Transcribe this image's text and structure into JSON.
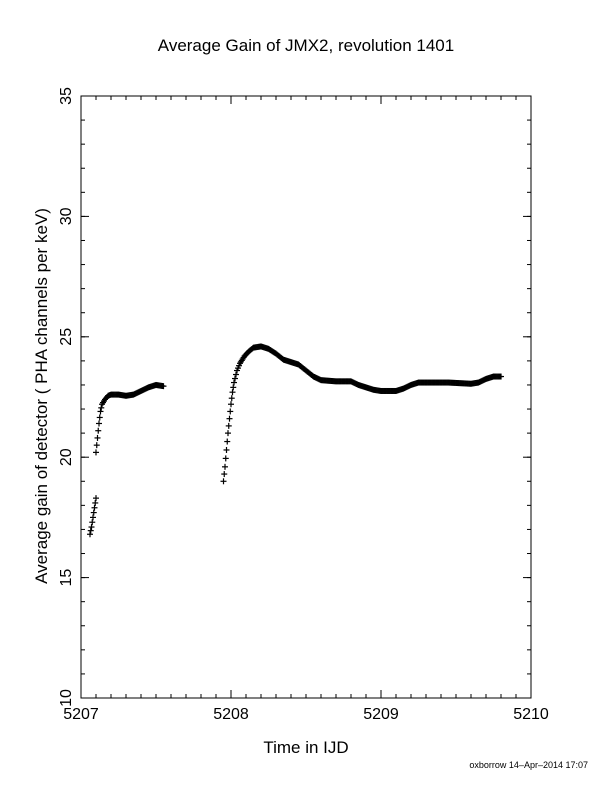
{
  "chart_data": {
    "type": "scatter",
    "title": "Average Gain of JMX2, revolution 1401",
    "xlabel": "Time in IJD",
    "ylabel": "Average gain of detector ( PHA channels per keV)",
    "xlim": [
      5207,
      5210
    ],
    "ylim": [
      10,
      35
    ],
    "xticks": [
      "5207",
      "5208",
      "5209",
      "5210"
    ],
    "yticks": [
      "10",
      "15",
      "20",
      "25",
      "30",
      "35"
    ],
    "marker": "+",
    "grid": false,
    "series": [
      {
        "values": [
          [
            5207.06,
            16.8
          ],
          [
            5207.07,
            17.1
          ],
          [
            5207.08,
            17.5
          ],
          [
            5207.09,
            17.9
          ],
          [
            5207.1,
            18.3
          ],
          [
            5207.1,
            20.2
          ],
          [
            5207.11,
            20.8
          ],
          [
            5207.12,
            21.4
          ],
          [
            5207.13,
            21.9
          ],
          [
            5207.14,
            22.2
          ],
          [
            5207.16,
            22.4
          ],
          [
            5207.18,
            22.55
          ],
          [
            5207.2,
            22.6
          ],
          [
            5207.25,
            22.6
          ],
          [
            5207.3,
            22.55
          ],
          [
            5207.35,
            22.6
          ],
          [
            5207.4,
            22.75
          ],
          [
            5207.45,
            22.9
          ],
          [
            5207.5,
            23.0
          ],
          [
            5207.55,
            22.95
          ],
          [
            5207.95,
            19.0
          ],
          [
            5207.96,
            19.6
          ],
          [
            5207.97,
            20.3
          ],
          [
            5207.98,
            21.0
          ],
          [
            5207.99,
            21.6
          ],
          [
            5208.0,
            22.2
          ],
          [
            5208.01,
            22.7
          ],
          [
            5208.02,
            23.1
          ],
          [
            5208.04,
            23.6
          ],
          [
            5208.06,
            23.9
          ],
          [
            5208.09,
            24.2
          ],
          [
            5208.12,
            24.4
          ],
          [
            5208.15,
            24.55
          ],
          [
            5208.2,
            24.6
          ],
          [
            5208.25,
            24.5
          ],
          [
            5208.3,
            24.3
          ],
          [
            5208.35,
            24.05
          ],
          [
            5208.4,
            23.95
          ],
          [
            5208.45,
            23.85
          ],
          [
            5208.5,
            23.6
          ],
          [
            5208.55,
            23.35
          ],
          [
            5208.6,
            23.2
          ],
          [
            5208.7,
            23.15
          ],
          [
            5208.8,
            23.15
          ],
          [
            5208.85,
            23.0
          ],
          [
            5208.9,
            22.9
          ],
          [
            5208.95,
            22.8
          ],
          [
            5209.0,
            22.75
          ],
          [
            5209.1,
            22.75
          ],
          [
            5209.15,
            22.85
          ],
          [
            5209.2,
            23.0
          ],
          [
            5209.25,
            23.1
          ],
          [
            5209.35,
            23.1
          ],
          [
            5209.45,
            23.1
          ],
          [
            5209.6,
            23.05
          ],
          [
            5209.65,
            23.1
          ],
          [
            5209.7,
            23.25
          ],
          [
            5209.75,
            23.35
          ],
          [
            5209.8,
            23.35
          ]
        ]
      }
    ]
  },
  "footer": "oxborrow 14–Apr–2014 17:07"
}
